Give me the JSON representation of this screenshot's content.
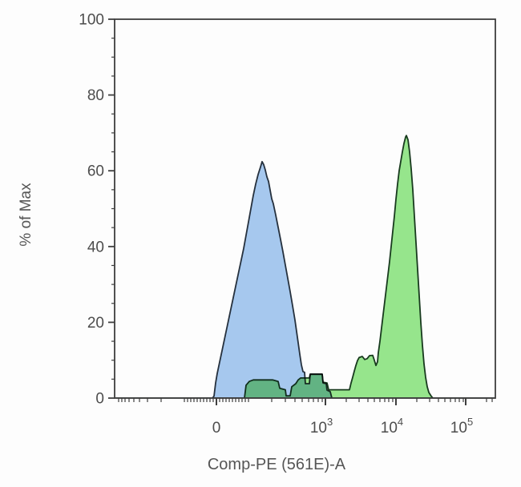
{
  "chart_data": {
    "type": "area",
    "subtype": "flow-cytometry-overlaid-histograms",
    "title": "",
    "xlabel": "Comp-PE (561E)-A",
    "ylabel": "% of Max",
    "x_scale": "biexponential (logicle)",
    "ylim": [
      0,
      100
    ],
    "grid": false,
    "legend": "none",
    "style": {
      "background": "#fdfdfd",
      "axis_color": "#3e3e3e",
      "tick_label_color": "#4d4d4d",
      "axis_title_color": "#565656",
      "tick_label_size": 19,
      "superscript_size": 13,
      "axis_title_size": 20
    },
    "y_axis": {
      "major_ticks": [
        {
          "pct": 0,
          "label": "0"
        },
        {
          "pct": 20,
          "label": "20"
        },
        {
          "pct": 40,
          "label": "40"
        },
        {
          "pct": 60,
          "label": "60"
        },
        {
          "pct": 80,
          "label": "80"
        },
        {
          "pct": 100,
          "label": "100"
        }
      ],
      "minor_ticks_pct": [
        5,
        10,
        15,
        25,
        30,
        35,
        45,
        50,
        55,
        65,
        70,
        75,
        85,
        90,
        95
      ]
    },
    "x_axis": {
      "major_ticks": [
        {
          "fx": 0.2674,
          "base": "0",
          "exp": ""
        },
        {
          "fx": 0.5537,
          "base": "10",
          "exp": "3"
        },
        {
          "fx": 0.7389,
          "base": "10",
          "exp": "4"
        },
        {
          "fx": 0.9221,
          "base": "10",
          "exp": "5"
        }
      ],
      "minor_ticks_fx": [
        0.0105,
        0.0189,
        0.0274,
        0.0379,
        0.0505,
        0.0653,
        0.0863,
        0.1221,
        0.1832,
        0.1916,
        0.2,
        0.2084,
        0.2168,
        0.2253,
        0.2337,
        0.2421,
        0.2505,
        0.2589,
        0.2758,
        0.2842,
        0.2926,
        0.3011,
        0.3095,
        0.3179,
        0.3263,
        0.3347,
        0.3432,
        0.3516,
        0.4126,
        0.4484,
        0.4737,
        0.4926,
        0.5095,
        0.5221,
        0.5347,
        0.5453,
        0.6084,
        0.6421,
        0.6653,
        0.6821,
        0.6968,
        0.7095,
        0.72,
        0.7305,
        0.7937,
        0.8274,
        0.8505,
        0.8674,
        0.8821,
        0.8947,
        0.9053,
        0.9158,
        0.9768,
        0.9916
      ]
    },
    "series": [
      {
        "name": "green-histogram",
        "fill": "#96e58c",
        "stroke": "#183a1e",
        "peak": {
          "x_approx": "1.4e4",
          "y_pct": 69.3
        },
        "points": [
          [
            0,
            0
          ],
          [
            0.3411,
            0
          ],
          [
            0.3453,
            3.4
          ],
          [
            0.3537,
            4.4
          ],
          [
            0.3642,
            4.8
          ],
          [
            0.4147,
            4.8
          ],
          [
            0.4295,
            4.4
          ],
          [
            0.4337,
            2.6
          ],
          [
            0.4484,
            2.2
          ],
          [
            0.4505,
            0.6
          ],
          [
            0.4611,
            0.6
          ],
          [
            0.4653,
            3
          ],
          [
            0.4758,
            3.8
          ],
          [
            0.4821,
            4.8
          ],
          [
            0.4884,
            5.3
          ],
          [
            0.5116,
            5.3
          ],
          [
            0.5137,
            6.3
          ],
          [
            0.5453,
            6.3
          ],
          [
            0.5474,
            4.2
          ],
          [
            0.5579,
            4
          ],
          [
            0.5621,
            2.2
          ],
          [
            0.6168,
            2.2
          ],
          [
            0.6211,
            4
          ],
          [
            0.6253,
            5.5
          ],
          [
            0.6295,
            7.1
          ],
          [
            0.6337,
            8.6
          ],
          [
            0.6379,
            9.9
          ],
          [
            0.6421,
            10.7
          ],
          [
            0.6505,
            11
          ],
          [
            0.6568,
            10.2
          ],
          [
            0.6632,
            10.4
          ],
          [
            0.6695,
            11.2
          ],
          [
            0.6779,
            11.3
          ],
          [
            0.6821,
            10
          ],
          [
            0.6863,
            8.6
          ],
          [
            0.6905,
            9.6
          ],
          [
            0.6926,
            12
          ],
          [
            0.6968,
            15
          ],
          [
            0.7011,
            18.5
          ],
          [
            0.7053,
            22
          ],
          [
            0.7095,
            25.5
          ],
          [
            0.7137,
            29
          ],
          [
            0.7179,
            32.5
          ],
          [
            0.7221,
            36
          ],
          [
            0.7263,
            40
          ],
          [
            0.7305,
            44
          ],
          [
            0.7347,
            48
          ],
          [
            0.7389,
            52.5
          ],
          [
            0.7432,
            56.5
          ],
          [
            0.7474,
            60
          ],
          [
            0.7516,
            62.5
          ],
          [
            0.7558,
            65
          ],
          [
            0.76,
            67.2
          ],
          [
            0.7642,
            68.9
          ],
          [
            0.7663,
            69.3
          ],
          [
            0.7705,
            68.2
          ],
          [
            0.7747,
            65
          ],
          [
            0.7789,
            60.5
          ],
          [
            0.7832,
            55
          ],
          [
            0.7874,
            48
          ],
          [
            0.7916,
            41
          ],
          [
            0.7958,
            34
          ],
          [
            0.8,
            27
          ],
          [
            0.8042,
            20
          ],
          [
            0.8084,
            14
          ],
          [
            0.8126,
            9
          ],
          [
            0.8168,
            5.5
          ],
          [
            0.8211,
            3
          ],
          [
            0.8253,
            1.5
          ],
          [
            0.8316,
            0.5
          ],
          [
            0.8358,
            0
          ],
          [
            1,
            0
          ]
        ]
      },
      {
        "name": "blue-histogram",
        "fill": "#a6c8ee",
        "stroke": "#25303d",
        "blend": "multiply",
        "peak": {
          "x_approx": "1.5e2",
          "y_pct": 62.4
        },
        "points": [
          [
            0,
            0
          ],
          [
            0.2568,
            0
          ],
          [
            0.2611,
            0.5
          ],
          [
            0.2653,
            4
          ],
          [
            0.2695,
            6.5
          ],
          [
            0.2758,
            9.5
          ],
          [
            0.2821,
            12.5
          ],
          [
            0.2884,
            15.5
          ],
          [
            0.2947,
            18.5
          ],
          [
            0.3011,
            21.5
          ],
          [
            0.3074,
            24.5
          ],
          [
            0.3137,
            27.5
          ],
          [
            0.32,
            30.5
          ],
          [
            0.3263,
            33.5
          ],
          [
            0.3326,
            36.5
          ],
          [
            0.3389,
            39.5
          ],
          [
            0.3453,
            43
          ],
          [
            0.3516,
            46.5
          ],
          [
            0.3579,
            50
          ],
          [
            0.3642,
            53.5
          ],
          [
            0.3705,
            56.5
          ],
          [
            0.3768,
            59
          ],
          [
            0.3832,
            61
          ],
          [
            0.3874,
            62.4
          ],
          [
            0.3916,
            61.6
          ],
          [
            0.3958,
            60.2
          ],
          [
            0.4,
            58.4
          ],
          [
            0.4042,
            57.2
          ],
          [
            0.4084,
            54.9
          ],
          [
            0.4126,
            52.6
          ],
          [
            0.4168,
            51.3
          ],
          [
            0.4232,
            48.3
          ],
          [
            0.4295,
            45.1
          ],
          [
            0.4358,
            41.9
          ],
          [
            0.4421,
            38.6
          ],
          [
            0.4484,
            35.1
          ],
          [
            0.4547,
            31.6
          ],
          [
            0.4611,
            28.1
          ],
          [
            0.4674,
            24.4
          ],
          [
            0.4737,
            20.6
          ],
          [
            0.4779,
            17.6
          ],
          [
            0.4821,
            14.6
          ],
          [
            0.4863,
            11.6
          ],
          [
            0.4905,
            8.8
          ],
          [
            0.4947,
            7
          ],
          [
            0.4989,
            6.8
          ],
          [
            0.5011,
            3.8
          ],
          [
            0.5116,
            3.8
          ],
          [
            0.5137,
            6.3
          ],
          [
            0.5453,
            6.3
          ],
          [
            0.5474,
            4
          ],
          [
            0.5558,
            3.8
          ],
          [
            0.5579,
            2.1
          ],
          [
            0.5663,
            1.7
          ],
          [
            0.5705,
            0
          ],
          [
            1,
            0
          ]
        ]
      }
    ]
  }
}
